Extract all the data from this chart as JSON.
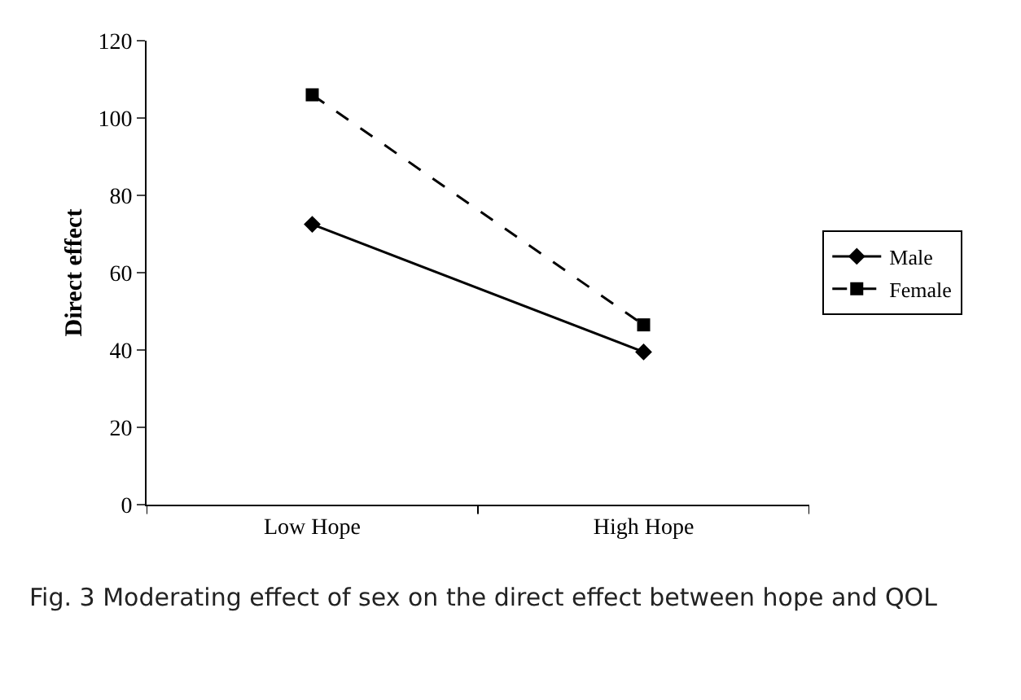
{
  "chart_data": {
    "type": "line",
    "ylabel": "Direct effect",
    "categories": [
      "Low Hope",
      "High Hope"
    ],
    "series": [
      {
        "name": "Male",
        "color": "#000000",
        "values": [
          72.5,
          39.5
        ],
        "marker": "diamond",
        "line_style": "solid"
      },
      {
        "name": "Female",
        "color": "#000000",
        "values": [
          106,
          46.5
        ],
        "marker": "square",
        "line_style": "dashed"
      }
    ],
    "ylim": [
      0,
      120
    ],
    "yticks": [
      0,
      20,
      40,
      60,
      80,
      100,
      120
    ],
    "grid": false,
    "legend": "right",
    "annotations": [
      "Fig. 3 Moderating effect of sex on the direct effect between hope and QOL"
    ]
  }
}
